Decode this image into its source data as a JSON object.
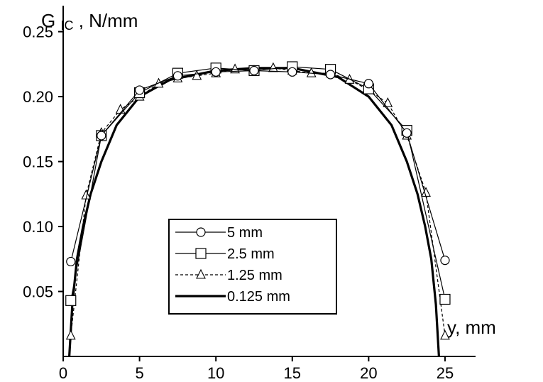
{
  "chart_data": {
    "type": "line",
    "ylabel_main": "G",
    "ylabel_sub": "IC",
    "ylabel_unit": ", N/mm",
    "xlabel": "y, mm",
    "xlim": [
      0,
      27
    ],
    "ylim": [
      0,
      0.27
    ],
    "xticks": [
      0,
      5,
      10,
      15,
      20,
      25
    ],
    "xtick_labels": [
      "0",
      "5",
      "10",
      "15",
      "20",
      "25"
    ],
    "yticks": [
      0.05,
      0.1,
      0.15,
      0.2,
      0.25
    ],
    "ytick_labels": [
      "0.05",
      "0.10",
      "0.15",
      "0.20",
      "0.25"
    ],
    "grid": false,
    "legend_position": "center",
    "series": [
      {
        "name": "5 mm",
        "style": "thin-circle",
        "x": [
          0.5,
          2.5,
          5,
          7.5,
          10,
          12.5,
          15,
          17.5,
          20,
          22.5,
          25
        ],
        "y": [
          0.073,
          0.17,
          0.205,
          0.216,
          0.219,
          0.22,
          0.219,
          0.217,
          0.21,
          0.172,
          0.074
        ]
      },
      {
        "name": "2.5 mm",
        "style": "thin-square",
        "x": [
          0.5,
          2.5,
          5,
          7.5,
          10,
          12.5,
          15,
          17.5,
          20,
          22.5,
          25
        ],
        "y": [
          0.043,
          0.17,
          0.203,
          0.218,
          0.222,
          0.22,
          0.223,
          0.221,
          0.206,
          0.174,
          0.044
        ]
      },
      {
        "name": "1.25 mm",
        "style": "dashed-triangle",
        "x": [
          0.5,
          1.5,
          2.5,
          3.75,
          5,
          6.25,
          7.5,
          8.75,
          10,
          11.25,
          12.5,
          13.75,
          15,
          16.25,
          17.5,
          18.75,
          20,
          21.25,
          22.5,
          23.75,
          25
        ],
        "y": [
          0.016,
          0.124,
          0.172,
          0.19,
          0.2,
          0.21,
          0.214,
          0.216,
          0.218,
          0.221,
          0.22,
          0.222,
          0.22,
          0.218,
          0.218,
          0.213,
          0.205,
          0.195,
          0.17,
          0.126,
          0.016
        ]
      },
      {
        "name": "0.125 mm",
        "style": "thick-solid",
        "x": [
          0.4,
          0.6,
          0.9,
          1.3,
          1.8,
          2.5,
          3.5,
          5,
          7,
          10,
          12.5,
          15,
          18,
          20,
          21.5,
          22.5,
          23.2,
          23.7,
          24.1,
          24.4,
          24.6
        ],
        "y": [
          0.0,
          0.04,
          0.075,
          0.1,
          0.125,
          0.15,
          0.178,
          0.2,
          0.213,
          0.22,
          0.222,
          0.222,
          0.215,
          0.2,
          0.178,
          0.15,
          0.125,
          0.1,
          0.075,
          0.04,
          0.0
        ]
      }
    ]
  }
}
